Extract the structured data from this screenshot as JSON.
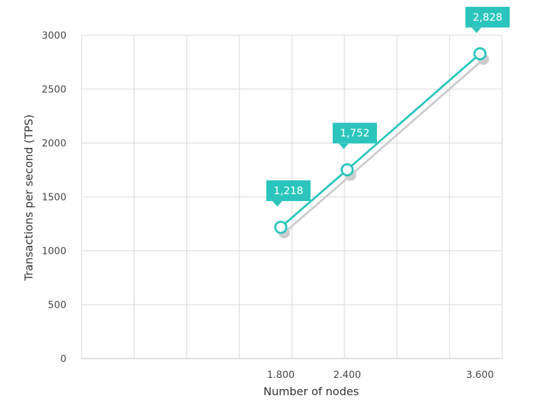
{
  "chart_data": {
    "type": "line",
    "title": "",
    "xlabel": "Number of nodes",
    "ylabel": "Transactions per second (TPS)",
    "xlim": [
      0,
      3800
    ],
    "ylim": [
      0,
      3000
    ],
    "x_ticks": [
      1800,
      2400,
      3600
    ],
    "x_tick_labels": [
      "1.800",
      "2.400",
      "3.600"
    ],
    "y_ticks": [
      0,
      500,
      1000,
      1500,
      2000,
      2500,
      3000
    ],
    "y_tick_labels": [
      "0",
      "500",
      "1000",
      "1500",
      "2000",
      "2500",
      "3000"
    ],
    "grid": true,
    "series": [
      {
        "x": [
          1800,
          2400,
          3600
        ],
        "y": [
          1218,
          1752,
          2828
        ],
        "data_labels": [
          "1,218",
          "1,752",
          "2,828"
        ],
        "color": "#2cc5bd"
      }
    ],
    "shadow_color": "#cccccc"
  }
}
